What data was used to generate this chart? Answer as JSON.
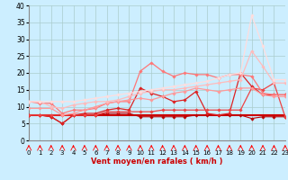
{
  "xlabel": "Vent moyen/en rafales ( km/h )",
  "xlim": [
    0,
    23
  ],
  "ylim": [
    0,
    40
  ],
  "yticks": [
    0,
    5,
    10,
    15,
    20,
    25,
    30,
    35,
    40
  ],
  "xticks": [
    0,
    1,
    2,
    3,
    4,
    5,
    6,
    7,
    8,
    9,
    10,
    11,
    12,
    13,
    14,
    15,
    16,
    17,
    18,
    19,
    20,
    21,
    22,
    23
  ],
  "bg_color": "#cceeff",
  "grid_color": "#aacccc",
  "series": [
    {
      "x": [
        0,
        1,
        2,
        3,
        4,
        5,
        6,
        7,
        8,
        9,
        10,
        11,
        12,
        13,
        14,
        15,
        16,
        17,
        18,
        19,
        20,
        21,
        22,
        23
      ],
      "y": [
        7.5,
        7.5,
        7.5,
        7.5,
        7.5,
        7.5,
        7.5,
        7.5,
        7.5,
        7.5,
        7.5,
        7.5,
        7.5,
        7.5,
        7.5,
        7.5,
        7.5,
        7.5,
        7.5,
        7.5,
        7.5,
        7.5,
        7.5,
        7.5
      ],
      "color": "#cc0000",
      "lw": 1.5,
      "marker": null
    },
    {
      "x": [
        0,
        1,
        2,
        3,
        4,
        5,
        6,
        7,
        8,
        9,
        10,
        11,
        12,
        13,
        14,
        15,
        16,
        17,
        18,
        19,
        20,
        21,
        22,
        23
      ],
      "y": [
        7.5,
        7.5,
        7.0,
        5.0,
        7.5,
        7.5,
        7.5,
        8.0,
        8.0,
        8.0,
        7.0,
        7.0,
        7.0,
        7.0,
        7.0,
        7.5,
        7.5,
        7.5,
        7.5,
        7.5,
        6.5,
        7.0,
        7.0,
        7.0
      ],
      "color": "#bb0000",
      "lw": 0.8,
      "marker": "D",
      "markersize": 1.8
    },
    {
      "x": [
        0,
        1,
        2,
        3,
        4,
        5,
        6,
        7,
        8,
        9,
        10,
        11,
        12,
        13,
        14,
        15,
        16,
        17,
        18,
        19,
        20,
        21,
        22,
        23
      ],
      "y": [
        7.5,
        7.5,
        7.0,
        5.0,
        7.5,
        8.0,
        8.0,
        9.0,
        9.5,
        9.0,
        15.5,
        14.0,
        13.0,
        11.5,
        12.0,
        14.5,
        8.0,
        7.5,
        8.0,
        20.0,
        16.0,
        13.5,
        13.5,
        13.5
      ],
      "color": "#dd2222",
      "lw": 0.9,
      "marker": "D",
      "markersize": 1.8
    },
    {
      "x": [
        0,
        1,
        2,
        3,
        4,
        5,
        6,
        7,
        8,
        9,
        10,
        11,
        12,
        13,
        14,
        15,
        16,
        17,
        18,
        19,
        20,
        21,
        22,
        23
      ],
      "y": [
        7.5,
        7.5,
        7.5,
        7.5,
        7.5,
        7.5,
        7.5,
        8.5,
        8.5,
        8.5,
        8.5,
        8.5,
        9.0,
        9.0,
        9.0,
        9.0,
        9.0,
        9.0,
        9.0,
        9.0,
        15.5,
        15.0,
        17.0,
        7.0
      ],
      "color": "#ee4444",
      "lw": 0.9,
      "marker": "D",
      "markersize": 1.8
    },
    {
      "x": [
        0,
        1,
        2,
        3,
        4,
        5,
        6,
        7,
        8,
        9,
        10,
        11,
        12,
        13,
        14,
        15,
        16,
        17,
        18,
        19,
        20,
        21,
        22,
        23
      ],
      "y": [
        11.5,
        11.0,
        11.0,
        8.0,
        9.0,
        9.0,
        9.5,
        11.0,
        11.5,
        11.5,
        20.5,
        23.0,
        20.5,
        19.0,
        20.0,
        19.5,
        19.5,
        18.5,
        19.5,
        19.5,
        19.0,
        14.0,
        13.5,
        13.5
      ],
      "color": "#ff7777",
      "lw": 0.9,
      "marker": "D",
      "markersize": 1.8
    },
    {
      "x": [
        0,
        1,
        2,
        3,
        4,
        5,
        6,
        7,
        8,
        9,
        10,
        11,
        12,
        13,
        14,
        15,
        16,
        17,
        18,
        19,
        20,
        21,
        22,
        23
      ],
      "y": [
        9.5,
        9.5,
        9.5,
        7.5,
        8.0,
        9.0,
        10.0,
        11.0,
        11.5,
        12.0,
        12.5,
        12.0,
        13.0,
        14.0,
        14.5,
        15.5,
        15.0,
        14.5,
        15.0,
        15.5,
        15.5,
        13.5,
        13.0,
        13.0
      ],
      "color": "#ff9999",
      "lw": 0.9,
      "marker": "D",
      "markersize": 1.8
    },
    {
      "x": [
        0,
        1,
        2,
        3,
        4,
        5,
        6,
        7,
        8,
        9,
        10,
        11,
        12,
        13,
        14,
        15,
        16,
        17,
        18,
        19,
        20,
        21,
        22,
        23
      ],
      "y": [
        11.5,
        11.5,
        10.0,
        9.5,
        10.5,
        11.0,
        11.5,
        11.5,
        12.0,
        13.0,
        14.0,
        14.5,
        15.0,
        15.0,
        15.5,
        16.0,
        16.5,
        17.0,
        17.5,
        18.0,
        26.5,
        22.0,
        17.0,
        17.0
      ],
      "color": "#ffbbbb",
      "lw": 0.9,
      "marker": "D",
      "markersize": 1.8
    },
    {
      "x": [
        0,
        1,
        2,
        3,
        4,
        5,
        6,
        7,
        8,
        9,
        10,
        11,
        12,
        13,
        14,
        15,
        16,
        17,
        18,
        19,
        20,
        21,
        22,
        23
      ],
      "y": [
        11.5,
        11.5,
        11.5,
        11.5,
        11.5,
        12.0,
        12.5,
        13.0,
        13.5,
        14.0,
        14.5,
        15.0,
        15.5,
        16.0,
        16.5,
        17.0,
        17.5,
        18.5,
        19.5,
        20.0,
        37.0,
        28.0,
        18.0,
        18.0
      ],
      "color": "#ffdddd",
      "lw": 0.9,
      "marker": "D",
      "markersize": 1.8
    }
  ]
}
